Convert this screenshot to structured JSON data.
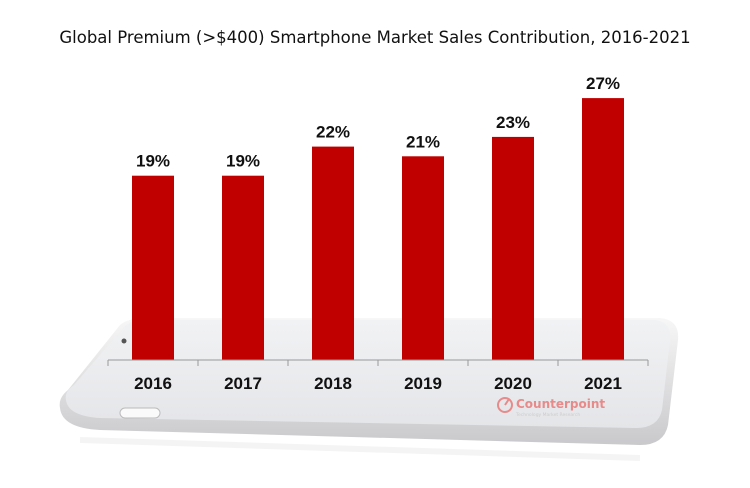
{
  "chart_data": {
    "type": "bar",
    "title": "Global Premium (>$400) Smartphone Market Sales Contribution, 2016-2021",
    "categories": [
      "2016",
      "2017",
      "2018",
      "2019",
      "2020",
      "2021"
    ],
    "values": [
      19,
      19,
      22,
      21,
      23,
      27
    ],
    "value_labels": [
      "19%",
      "19%",
      "22%",
      "21%",
      "23%",
      "27%"
    ],
    "unit": "%",
    "ylim": [
      0,
      30
    ],
    "grid": false,
    "bar_color": "#C00000",
    "watermark": {
      "brand": "Counterpoint",
      "tagline": "Technology Market Research",
      "color": "#E88A8A"
    }
  }
}
